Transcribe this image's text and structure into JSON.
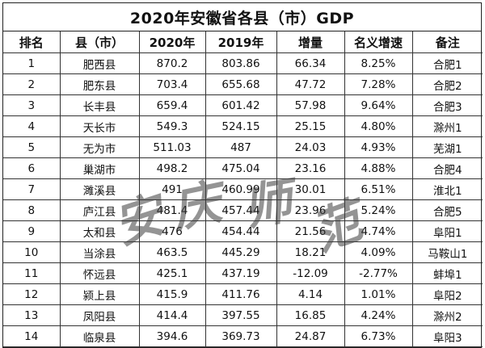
{
  "title": "2020年安徽省各县（市）GDP",
  "headers": [
    "排名",
    "县（市）",
    "2020年",
    "2019年",
    "增量",
    "名义增速",
    "备注"
  ],
  "rows": [
    [
      "1",
      "肥西县",
      "870.2",
      "803.86",
      "66.34",
      "8.25%",
      "合肥1"
    ],
    [
      "2",
      "肥东县",
      "703.4",
      "655.68",
      "47.72",
      "7.28%",
      "合肥2"
    ],
    [
      "3",
      "长丰县",
      "659.4",
      "601.42",
      "57.98",
      "9.64%",
      "合肥3"
    ],
    [
      "4",
      "天长市",
      "549.3",
      "524.15",
      "25.15",
      "4.80%",
      "滁州1"
    ],
    [
      "5",
      "无为市",
      "511.03",
      "487",
      "24.03",
      "4.93%",
      "芜湖1"
    ],
    [
      "6",
      "巢湖市",
      "498.2",
      "475.04",
      "23.16",
      "4.88%",
      "合肥4"
    ],
    [
      "7",
      "濉溪县",
      "491",
      "460.99",
      "30.01",
      "6.51%",
      "淮北1"
    ],
    [
      "8",
      "庐江县",
      "481.4",
      "457.44",
      "23.96",
      "5.24%",
      "合肥5"
    ],
    [
      "9",
      "太和县",
      "476",
      "454.44",
      "21.56",
      "4.74%",
      "阜阳1"
    ],
    [
      "10",
      "当涂县",
      "463.5",
      "445.29",
      "18.21",
      "4.09%",
      "马鞍山1"
    ],
    [
      "11",
      "怀远县",
      "425.1",
      "437.19",
      "-12.09",
      "-2.77%",
      "蚌埠1"
    ],
    [
      "12",
      "颍上县",
      "415.9",
      "411.76",
      "4.14",
      "1.01%",
      "阜阳2"
    ],
    [
      "13",
      "凤阳县",
      "414.4",
      "397.55",
      "16.85",
      "4.24%",
      "滁州2"
    ],
    [
      "14",
      "临泉县",
      "394.6",
      "369.73",
      "24.87",
      "6.73%",
      "阜阳3"
    ]
  ],
  "watermark": {
    "text": "安庆师范",
    "chars": [
      "安",
      "庆",
      "师",
      "范"
    ],
    "color": "#3c3c3c"
  }
}
